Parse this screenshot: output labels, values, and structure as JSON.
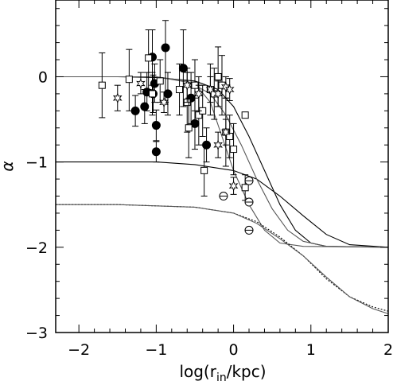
{
  "chart_data": {
    "type": "scatter",
    "xlabel": "log(r",
    "xlabel_sub": "in",
    "xlabel_tail": "/kpc)",
    "ylabel": "α",
    "xlim": [
      -2.3,
      2.0
    ],
    "ylim": [
      -3.0,
      0.9
    ],
    "xticks": [
      -2,
      -1,
      0,
      1,
      2
    ],
    "xtick_labels": [
      "−2",
      "−1",
      "0",
      "1",
      "2"
    ],
    "yticks": [
      -3,
      -2,
      -1,
      0
    ],
    "ytick_labels": [
      "−3",
      "−2",
      "−1",
      "0"
    ],
    "grid": false,
    "curves": [
      {
        "style": "solid",
        "color": "#000000",
        "points": [
          [
            -2.3,
            0.0
          ],
          [
            -1.5,
            0.0
          ],
          [
            -1.0,
            -0.01
          ],
          [
            -0.5,
            -0.05
          ],
          [
            -0.2,
            -0.15
          ],
          [
            0.0,
            -0.35
          ],
          [
            0.2,
            -0.7
          ],
          [
            0.4,
            -1.1
          ],
          [
            0.6,
            -1.5
          ],
          [
            0.8,
            -1.8
          ],
          [
            1.0,
            -1.95
          ],
          [
            1.2,
            -1.99
          ],
          [
            2.0,
            -2.0
          ]
        ]
      },
      {
        "style": "solid",
        "color": "#000000",
        "points": [
          [
            -2.3,
            -1.0
          ],
          [
            -1.5,
            -1.0
          ],
          [
            -1.0,
            -1.0
          ],
          [
            -0.5,
            -1.03
          ],
          [
            0.0,
            -1.1
          ],
          [
            0.3,
            -1.2
          ],
          [
            0.6,
            -1.4
          ],
          [
            0.9,
            -1.63
          ],
          [
            1.2,
            -1.85
          ],
          [
            1.5,
            -1.97
          ],
          [
            2.0,
            -2.0
          ]
        ]
      },
      {
        "style": "solid",
        "color": "#555555",
        "points": [
          [
            -2.3,
            0.0
          ],
          [
            -1.0,
            0.0
          ],
          [
            -0.6,
            -0.05
          ],
          [
            -0.3,
            -0.2
          ],
          [
            -0.1,
            -0.45
          ],
          [
            0.1,
            -0.8
          ],
          [
            0.3,
            -1.2
          ],
          [
            0.5,
            -1.55
          ],
          [
            0.7,
            -1.8
          ],
          [
            0.9,
            -1.93
          ],
          [
            1.2,
            -1.99
          ],
          [
            2.0,
            -2.0
          ]
        ]
      },
      {
        "style": "solid",
        "color": "#555555",
        "points": [
          [
            -2.3,
            0.0
          ],
          [
            -1.0,
            0.0
          ],
          [
            -0.5,
            -0.08
          ],
          [
            -0.3,
            -0.3
          ],
          [
            -0.15,
            -0.7
          ],
          [
            0.0,
            -1.1
          ],
          [
            0.2,
            -1.5
          ],
          [
            0.4,
            -1.8
          ],
          [
            0.6,
            -1.95
          ],
          [
            0.9,
            -1.99
          ],
          [
            2.0,
            -2.0
          ]
        ]
      },
      {
        "style": "dotted",
        "color": "#000000",
        "points": [
          [
            -2.3,
            -1.5
          ],
          [
            -1.5,
            -1.5
          ],
          [
            -0.5,
            -1.53
          ],
          [
            0.0,
            -1.6
          ],
          [
            0.3,
            -1.7
          ],
          [
            0.6,
            -1.88
          ],
          [
            0.9,
            -2.1
          ],
          [
            1.2,
            -2.37
          ],
          [
            1.5,
            -2.58
          ],
          [
            1.8,
            -2.7
          ],
          [
            2.0,
            -2.75
          ]
        ]
      },
      {
        "style": "solid",
        "color": "#555555",
        "points": [
          [
            -2.3,
            -1.5
          ],
          [
            -1.5,
            -1.5
          ],
          [
            -0.5,
            -1.53
          ],
          [
            0.0,
            -1.6
          ],
          [
            0.3,
            -1.72
          ],
          [
            0.6,
            -1.9
          ],
          [
            0.9,
            -2.1
          ],
          [
            1.2,
            -2.35
          ],
          [
            1.5,
            -2.58
          ],
          [
            1.8,
            -2.72
          ],
          [
            2.0,
            -2.78
          ]
        ]
      }
    ],
    "series": [
      {
        "marker": "filled-circle",
        "points": [
          {
            "x": -0.88,
            "y": 0.34,
            "lo": -0.3,
            "hi": 0.66
          },
          {
            "x": -1.05,
            "y": 0.23,
            "lo": -0.1,
            "hi": 0.55
          },
          {
            "x": -1.02,
            "y": -0.08,
            "lo": -0.3,
            "hi": 0.15
          },
          {
            "x": -1.12,
            "y": -0.18,
            "lo": -0.4,
            "hi": 0.05
          },
          {
            "x": -1.04,
            "y": -0.2,
            "lo": -0.42,
            "hi": 0.02
          },
          {
            "x": -1.15,
            "y": -0.35,
            "lo": -0.55,
            "hi": -0.15
          },
          {
            "x": -1.27,
            "y": -0.4,
            "lo": -0.58,
            "hi": -0.22
          },
          {
            "x": -1.0,
            "y": -0.57,
            "lo": -0.75,
            "hi": -0.39
          },
          {
            "x": -1.0,
            "y": -0.88,
            "lo": -1.0,
            "hi": -0.76
          },
          {
            "x": -0.85,
            "y": -0.2,
            "lo": -0.45,
            "hi": 0.05
          },
          {
            "x": -0.65,
            "y": 0.1,
            "lo": -0.35,
            "hi": 0.55
          },
          {
            "x": -0.55,
            "y": -0.25,
            "lo": -0.55,
            "hi": 0.05
          },
          {
            "x": -0.5,
            "y": -0.55,
            "lo": -0.85,
            "hi": -0.25
          },
          {
            "x": -0.35,
            "y": -0.8,
            "lo": -1.0,
            "hi": -0.6
          }
        ]
      },
      {
        "marker": "open-square",
        "points": [
          {
            "x": -1.7,
            "y": -0.1,
            "lo": -0.48,
            "hi": 0.28
          },
          {
            "x": -1.35,
            "y": -0.03,
            "lo": -0.4,
            "hi": 0.32
          },
          {
            "x": -1.1,
            "y": 0.22,
            "lo": -0.15,
            "hi": 0.55
          },
          {
            "x": -1.05,
            "y": -0.2,
            "lo": -0.45,
            "hi": 0.05
          },
          {
            "x": -0.95,
            "y": -0.05,
            "lo": -0.3,
            "hi": 0.2
          },
          {
            "x": -0.7,
            "y": -0.15,
            "lo": -0.45,
            "hi": 0.15
          },
          {
            "x": -0.6,
            "y": -0.3,
            "lo": -0.65,
            "hi": 0.05
          },
          {
            "x": -0.58,
            "y": -0.6,
            "lo": -0.95,
            "hi": -0.25
          },
          {
            "x": -0.5,
            "y": -0.1,
            "lo": -0.4,
            "hi": 0.2
          },
          {
            "x": -0.45,
            "y": -0.45,
            "lo": -0.8,
            "hi": -0.1
          },
          {
            "x": -0.4,
            "y": -0.4,
            "lo": -0.7,
            "hi": -0.1
          },
          {
            "x": -0.38,
            "y": -1.1,
            "lo": -1.4,
            "hi": -0.8
          },
          {
            "x": -0.3,
            "y": -0.15,
            "lo": -0.45,
            "hi": 0.15
          },
          {
            "x": -0.25,
            "y": -0.2,
            "lo": -0.5,
            "hi": 0.1
          },
          {
            "x": -0.2,
            "y": 0.0,
            "lo": -0.35,
            "hi": 0.35
          },
          {
            "x": -0.15,
            "y": -0.1,
            "lo": -0.45,
            "hi": 0.25
          },
          {
            "x": -0.1,
            "y": -0.65,
            "lo": -1.05,
            "hi": -0.25
          },
          {
            "x": -0.05,
            "y": -0.7,
            "lo": -0.95,
            "hi": -0.45
          },
          {
            "x": 0.0,
            "y": -0.85,
            "lo": -1.15,
            "hi": -0.55
          },
          {
            "x": 0.15,
            "y": -0.45,
            "lo": -0.45,
            "hi": -0.45
          },
          {
            "x": 0.15,
            "y": -1.3,
            "lo": -1.45,
            "hi": -1.15
          }
        ]
      },
      {
        "marker": "open-star",
        "points": [
          {
            "x": -1.5,
            "y": -0.25,
            "lo": -0.4,
            "hi": -0.1
          },
          {
            "x": -1.2,
            "y": -0.08,
            "lo": -0.2,
            "hi": 0.05
          },
          {
            "x": -0.9,
            "y": -0.3,
            "lo": -0.42,
            "hi": -0.18
          },
          {
            "x": -0.6,
            "y": -0.1,
            "lo": -0.3,
            "hi": 0.1
          },
          {
            "x": -0.45,
            "y": -0.2,
            "lo": -0.4,
            "hi": 0.0
          },
          {
            "x": -0.3,
            "y": -0.15,
            "lo": -0.3,
            "hi": 0.0
          },
          {
            "x": -0.2,
            "y": -0.2,
            "lo": -0.35,
            "hi": -0.05
          },
          {
            "x": -0.1,
            "y": -0.12,
            "lo": -0.25,
            "hi": 0.0
          },
          {
            "x": -0.05,
            "y": -0.15,
            "lo": -0.28,
            "hi": -0.02
          },
          {
            "x": -0.2,
            "y": -0.8,
            "lo": -0.95,
            "hi": -0.65
          },
          {
            "x": -0.1,
            "y": -0.65,
            "lo": -0.8,
            "hi": -0.5
          },
          {
            "x": 0.0,
            "y": -1.28,
            "lo": -1.38,
            "hi": -1.18
          }
        ]
      },
      {
        "marker": "open-circle-bar",
        "points": [
          {
            "x": -0.13,
            "y": -1.4,
            "lo": -1.4,
            "hi": -1.4
          },
          {
            "x": 0.2,
            "y": -1.22,
            "lo": -1.22,
            "hi": -1.22
          },
          {
            "x": 0.2,
            "y": -1.47,
            "lo": -1.47,
            "hi": -1.47
          },
          {
            "x": 0.2,
            "y": -1.8,
            "lo": -1.8,
            "hi": -1.8
          }
        ]
      }
    ]
  }
}
